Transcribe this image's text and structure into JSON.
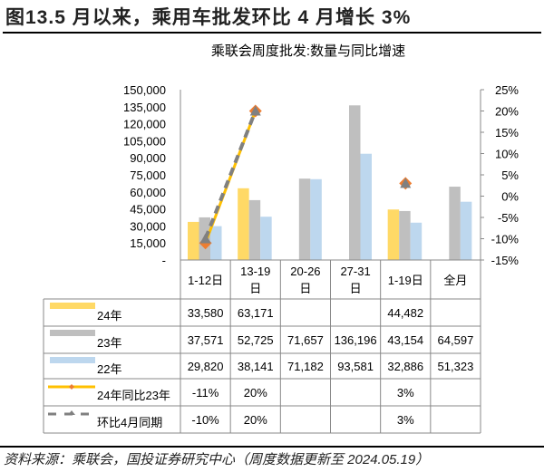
{
  "figure_title": "图13.5 月以来，乘用车批发环比 4 月增长 3%",
  "footer": "资料来源：乘联会，国投证券研究中心（周度数据更新至 2024.05.19）",
  "colors": {
    "y24": "#FFD966",
    "y23": "#BFBFBF",
    "y22": "#BDD7EE",
    "yoy_line": "#FFC000",
    "yoy_marker": "#ED7D31",
    "mom_line": "#808080"
  },
  "chart_data": {
    "type": "bar",
    "title": "乘联会周度批发:数量与同比增速",
    "categories": [
      "1-12日",
      "13-19日",
      "20-26日",
      "27-31日",
      "1-19日",
      "全月"
    ],
    "left_axis": {
      "range": [
        0,
        150000
      ],
      "ticks": [
        "-",
        "15,000",
        "30,000",
        "45,000",
        "60,000",
        "75,000",
        "90,000",
        "105,000",
        "120,000",
        "135,000",
        "150,000"
      ]
    },
    "right_axis": {
      "range": [
        -15,
        25
      ],
      "unit": "%",
      "ticks": [
        "-15%",
        "-10%",
        "-5%",
        "0%",
        "5%",
        "10%",
        "15%",
        "20%",
        "25%"
      ]
    },
    "series": [
      {
        "name": "24年",
        "type": "bar",
        "color": "#FFD966",
        "values": [
          33580,
          63171,
          null,
          null,
          44482,
          null
        ],
        "labels": [
          "33,580",
          "63,171",
          "",
          "",
          "44,482",
          ""
        ]
      },
      {
        "name": "23年",
        "type": "bar",
        "color": "#BFBFBF",
        "values": [
          37571,
          52725,
          71657,
          136196,
          43154,
          64597
        ],
        "labels": [
          "37,571",
          "52,725",
          "71,657",
          "136,196",
          "43,154",
          "64,597"
        ]
      },
      {
        "name": "22年",
        "type": "bar",
        "color": "#BDD7EE",
        "values": [
          29820,
          38141,
          71182,
          93581,
          32886,
          51323
        ],
        "labels": [
          "29,820",
          "38,141",
          "71,182",
          "93,581",
          "32,886",
          "51,323"
        ]
      },
      {
        "name": "24年同比23年",
        "type": "line",
        "axis": "right",
        "color": "#FFC000",
        "values": [
          -11,
          20,
          null,
          null,
          3,
          null
        ],
        "labels": [
          "-11%",
          "20%",
          "",
          "",
          "3%",
          ""
        ]
      },
      {
        "name": "环比4月同期",
        "type": "line",
        "axis": "right",
        "dashed": true,
        "color": "#808080",
        "values": [
          -10,
          20,
          null,
          null,
          3,
          null
        ],
        "labels": [
          "-10%",
          "20%",
          "",
          "",
          "3%",
          ""
        ]
      }
    ],
    "legend": "data-table below chart"
  }
}
